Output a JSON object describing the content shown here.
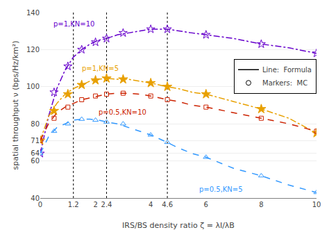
{
  "chart_data": {
    "type": "line",
    "xlabel": "IRS/BS density ratio ζ = λI/λB",
    "ylabel": "spatial throughput ν (bps/Hz/km²)",
    "xlim": [
      0,
      10
    ],
    "ylim": [
      40,
      140
    ],
    "xticks": [
      0,
      1.2,
      2,
      2.4,
      4,
      4.6,
      6,
      8,
      10
    ],
    "yticks": [
      40,
      60,
      64,
      71,
      80,
      100,
      120,
      140
    ],
    "grid": "y",
    "legend": "upper right",
    "legend_entries": [
      {
        "name": "Line:  Formula",
        "line_style": "solid",
        "color": "black"
      },
      {
        "name": "Markers:  MC",
        "marker": "circle-open",
        "color": "black"
      }
    ],
    "vlines": [
      1.2,
      2.4,
      4.6
    ],
    "series": [
      {
        "color": "#6600CC",
        "line_style": "dashdot",
        "marker": "star-open",
        "x": [
          0,
          0.3,
          0.6,
          0.9,
          1.2,
          1.5,
          1.8,
          2.1,
          2.4,
          2.8,
          3.2,
          3.6,
          4.0,
          4.6,
          5.0,
          5.5,
          6.0,
          7.0,
          8.0,
          9.0,
          10.0
        ],
        "values": [
          64,
          84,
          99,
          109,
          116,
          120,
          123,
          125,
          126,
          128,
          129,
          130,
          131,
          131,
          130,
          129,
          128,
          126,
          123,
          121,
          118
        ],
        "mc_x": [
          0,
          0.5,
          1.0,
          1.5,
          2.0,
          2.4,
          3.0,
          4.0,
          4.6,
          6.0,
          8.0,
          10.0
        ],
        "mc_values": [
          64,
          97,
          111,
          120,
          124,
          126,
          129,
          131,
          131,
          128,
          123,
          118
        ]
      },
      {
        "color": "#E8A000",
        "line_style": "dashdot",
        "marker": "star",
        "x": [
          0,
          0.3,
          0.6,
          0.9,
          1.2,
          1.5,
          1.8,
          2.1,
          2.4,
          2.8,
          3.2,
          3.6,
          4.0,
          4.6,
          5.0,
          5.5,
          6.0,
          7.0,
          8.0,
          9.0,
          10.0
        ],
        "values": [
          71,
          84,
          91,
          96,
          99,
          101,
          103,
          104,
          104.5,
          104,
          104,
          103,
          102,
          100,
          99,
          97,
          96,
          92,
          88,
          83,
          75
        ],
        "mc_x": [
          0,
          0.5,
          1.0,
          1.5,
          2.0,
          2.4,
          3.0,
          4.0,
          4.6,
          6.0,
          8.0,
          10.0
        ],
        "mc_values": [
          71,
          87,
          96,
          101,
          103.5,
          104.5,
          104,
          102,
          100,
          96,
          88,
          75
        ]
      },
      {
        "color": "#CC2200",
        "line_style": "dash",
        "marker": "square-open",
        "x": [
          0,
          0.3,
          0.6,
          0.9,
          1.2,
          1.5,
          1.8,
          2.1,
          2.4,
          2.8,
          3.2,
          3.6,
          4.0,
          4.6,
          5.0,
          5.5,
          6.0,
          7.0,
          8.0,
          9.0,
          10.0
        ],
        "values": [
          71,
          80,
          86,
          89,
          91,
          93,
          94,
          95,
          96,
          96.5,
          96.5,
          96,
          95,
          93,
          92,
          90,
          89,
          86,
          83,
          80,
          76
        ],
        "mc_x": [
          0,
          0.5,
          1.0,
          1.5,
          2.0,
          2.4,
          3.0,
          4.0,
          4.6,
          6.0,
          8.0,
          10.0
        ],
        "mc_values": [
          71,
          83,
          89,
          93,
          95,
          96,
          96.5,
          95,
          93,
          89,
          83,
          76
        ]
      },
      {
        "color": "#3399FF",
        "line_style": "dash",
        "marker": "triangle-up-open",
        "x": [
          0,
          0.3,
          0.6,
          0.9,
          1.2,
          1.5,
          1.8,
          2.1,
          2.4,
          2.8,
          3.2,
          3.6,
          4.0,
          4.6,
          5.0,
          5.5,
          6.0,
          7.0,
          8.0,
          9.0,
          10.0
        ],
        "values": [
          64,
          73,
          78,
          80,
          82,
          82.5,
          82.5,
          82,
          81,
          80,
          78,
          76,
          74,
          70,
          67,
          64,
          62,
          56,
          52,
          47,
          43
        ],
        "mc_x": [
          0,
          0.5,
          1.0,
          1.5,
          2.0,
          2.4,
          3.0,
          4.0,
          4.6,
          6.0,
          8.0,
          10.0
        ],
        "mc_values": [
          64,
          76,
          80,
          82.5,
          82,
          81,
          80,
          74,
          70,
          62,
          52,
          43
        ]
      }
    ],
    "annotations": [
      {
        "text": "p=1,KN=10",
        "x": 0.42,
        "y": 131,
        "color": "#6600CC"
      },
      {
        "text": "p=1,KN=5",
        "x": 1.45,
        "y": 107,
        "color": "#E8A000"
      },
      {
        "text": "p=0.5,KN=10",
        "x": 2.05,
        "y": 83.5,
        "color": "#CC2200"
      },
      {
        "text": "p=0.5,KN=5",
        "x": 5.7,
        "y": 42,
        "color": "#3399FF"
      }
    ]
  }
}
